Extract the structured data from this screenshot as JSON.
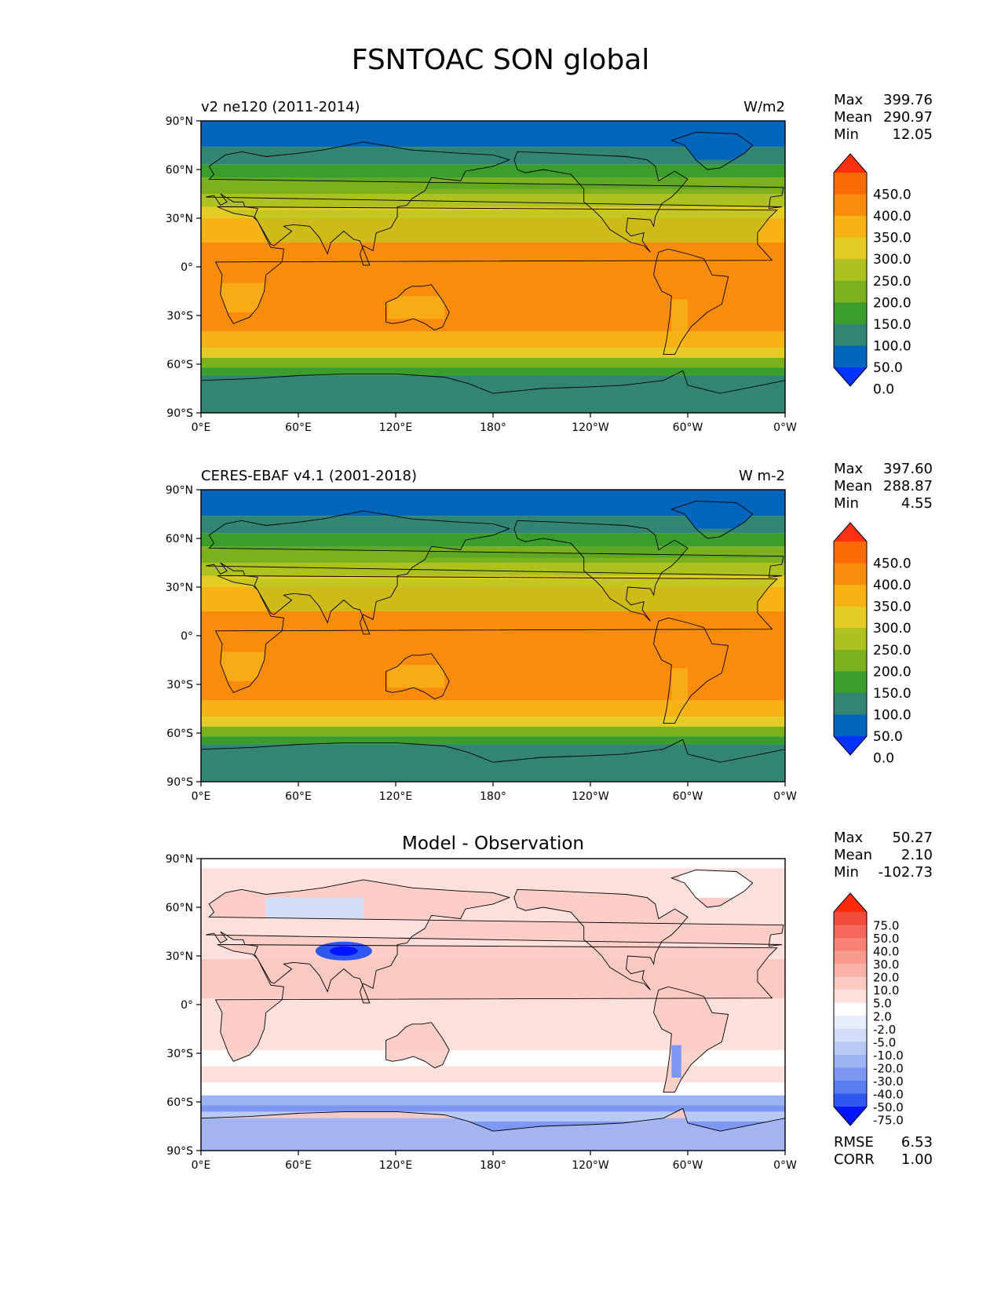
{
  "page_title": "FSNTOAC SON global",
  "colors": {
    "absolute_levels": [
      "#0033ff",
      "#0066bb",
      "#328573",
      "#3b9e2c",
      "#7cb11d",
      "#adc11f",
      "#e4cc24",
      "#f7b316",
      "#fa8c0b",
      "#fb6a06",
      "#ff3010"
    ],
    "diff_levels": [
      "#0015ff",
      "#2e58f0",
      "#5a7ef0",
      "#7c98f2",
      "#9cb3f4",
      "#b8c9f6",
      "#d3ddf9",
      "#e8eefb",
      "#ffffff",
      "#ffe0dc",
      "#fccac3",
      "#fab2a8",
      "#f89a8e",
      "#f68275",
      "#f4675a",
      "#f24a3c",
      "#ff2a0a"
    ],
    "coastline": "#000000"
  },
  "panels": [
    {
      "left_title": "v2 ne120 (2011-2014)",
      "right_title": "W/m2",
      "center_title": "",
      "stats": {
        "labels": [
          "Max",
          "Mean",
          "Min"
        ],
        "values": [
          "399.76",
          "290.97",
          "12.05"
        ]
      },
      "colorbar_labels": [
        "450.0",
        "400.0",
        "350.0",
        "300.0",
        "250.0",
        "200.0",
        "150.0",
        "100.0",
        "50.0",
        "0.0"
      ]
    },
    {
      "left_title": "CERES-EBAF v4.1 (2001-2018)",
      "right_title": "W m-2",
      "center_title": "",
      "stats": {
        "labels": [
          "Max",
          "Mean",
          "Min"
        ],
        "values": [
          "397.60",
          "288.87",
          "4.55"
        ]
      },
      "colorbar_labels": [
        "450.0",
        "400.0",
        "350.0",
        "300.0",
        "250.0",
        "200.0",
        "150.0",
        "100.0",
        "50.0",
        "0.0"
      ]
    },
    {
      "left_title": "",
      "right_title": "",
      "center_title": "Model - Observation",
      "stats": {
        "labels": [
          "Max",
          "Mean",
          "Min"
        ],
        "values": [
          "50.27",
          "2.10",
          "-102.73"
        ]
      },
      "colorbar_labels": [
        "75.0",
        "50.0",
        "40.0",
        "30.0",
        "20.0",
        "10.0",
        "5.0",
        "2.0",
        "-2.0",
        "-5.0",
        "-10.0",
        "-20.0",
        "-30.0",
        "-40.0",
        "-50.0",
        "-75.0"
      ],
      "extra_stats": {
        "labels": [
          "RMSE",
          "CORR"
        ],
        "values": [
          "6.53",
          "1.00"
        ]
      }
    }
  ],
  "axis_labels": {
    "lat": [
      "90°N",
      "60°N",
      "30°N",
      "0°",
      "30°S",
      "60°S",
      "90°S"
    ],
    "lon": [
      "0°E",
      "60°E",
      "120°E",
      "180°",
      "120°W",
      "60°W",
      "0°W"
    ]
  }
}
